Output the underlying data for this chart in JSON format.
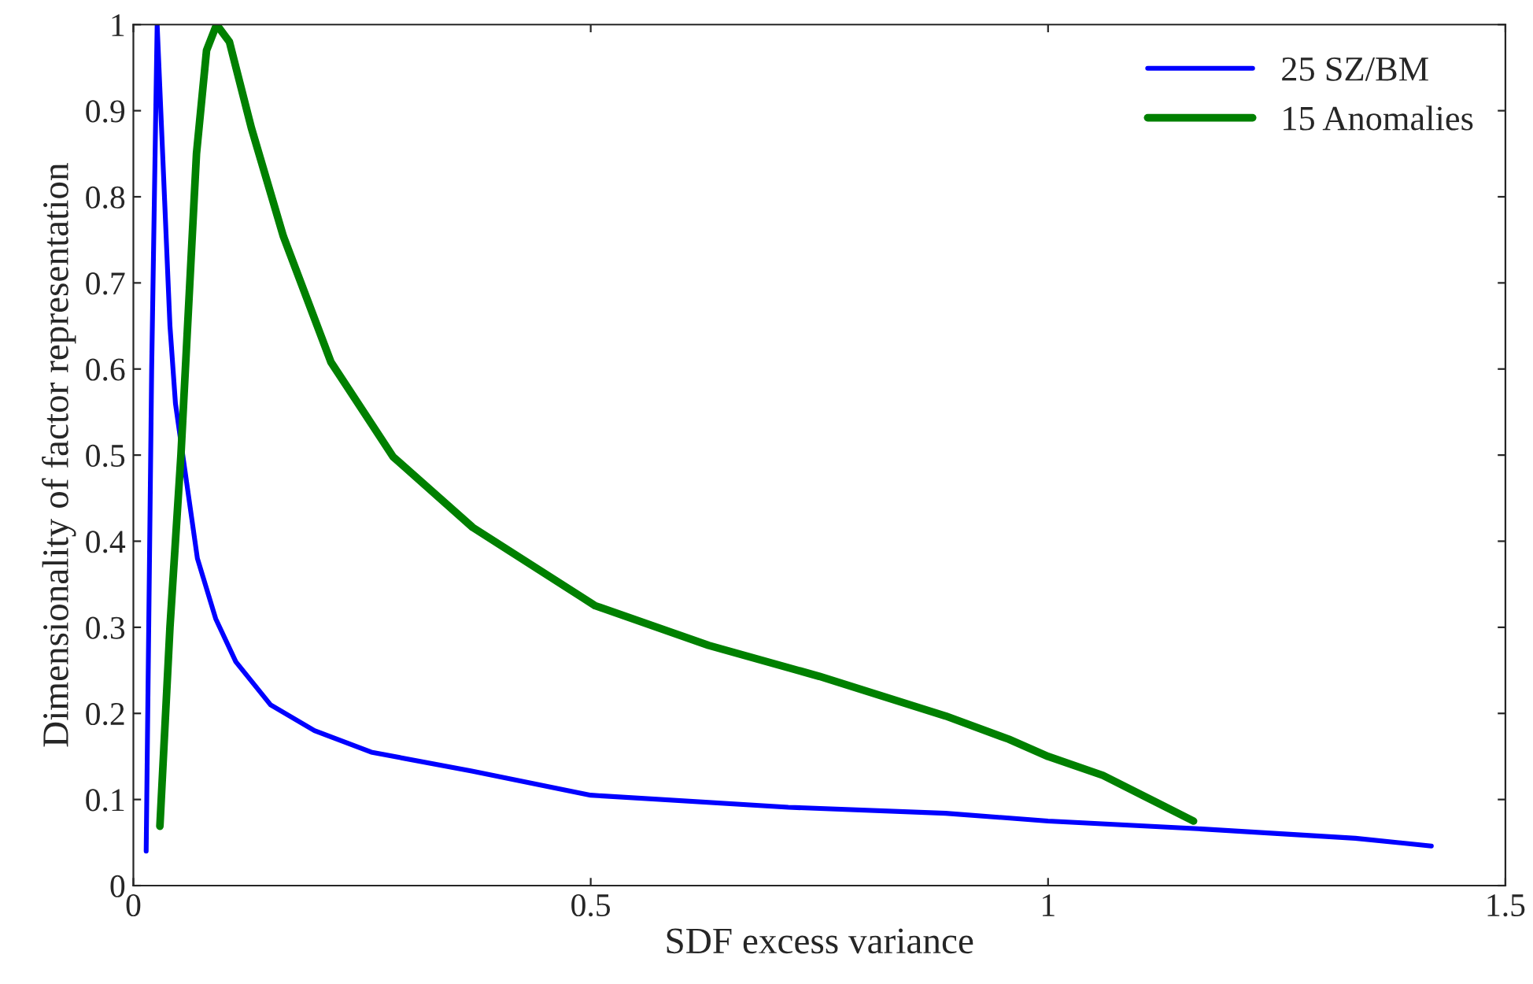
{
  "chart_data": {
    "type": "line",
    "xlabel": "SDF excess variance",
    "ylabel": "Dimensionality of factor representation",
    "xlim": [
      0,
      1.5
    ],
    "xticks": [
      0,
      0.5,
      1,
      1.5
    ],
    "ylim": [
      0,
      1
    ],
    "yticks": [
      0,
      0.1,
      0.2,
      0.3,
      0.4,
      0.5,
      0.6,
      0.7,
      0.8,
      0.9,
      1
    ],
    "grid": false,
    "legend": "top right",
    "line_style": "solid",
    "marker": "none",
    "series": [
      {
        "name": "25 SZ/BM",
        "color": "#0000ff",
        "x": [
          0.014,
          0.02,
          0.026,
          0.032,
          0.04,
          0.046,
          0.07,
          0.09,
          0.112,
          0.15,
          0.198,
          0.26,
          0.37,
          0.5,
          0.716,
          0.888,
          1.0,
          1.164,
          1.336,
          1.419
        ],
        "values": [
          0.04,
          0.6,
          1.0,
          0.85,
          0.65,
          0.56,
          0.38,
          0.31,
          0.26,
          0.21,
          0.18,
          0.155,
          0.133,
          0.105,
          0.091,
          0.084,
          0.075,
          0.066,
          0.055,
          0.046
        ]
      },
      {
        "name": "15 Anomalies",
        "color": "#008000",
        "x": [
          0.029,
          0.04,
          0.052,
          0.069,
          0.08,
          0.091,
          0.105,
          0.129,
          0.164,
          0.216,
          0.284,
          0.371,
          0.505,
          0.629,
          0.75,
          0.888,
          0.957,
          1.0,
          1.06,
          1.159
        ],
        "values": [
          0.069,
          0.3,
          0.5,
          0.85,
          0.97,
          1.0,
          0.98,
          0.88,
          0.754,
          0.608,
          0.498,
          0.416,
          0.325,
          0.279,
          0.243,
          0.197,
          0.17,
          0.15,
          0.128,
          0.075
        ]
      }
    ]
  }
}
